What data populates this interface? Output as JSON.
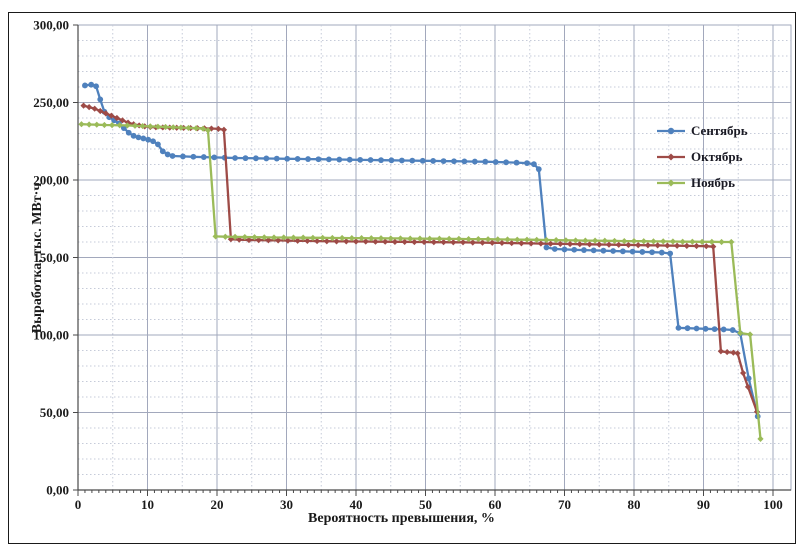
{
  "chart_data": {
    "type": "line",
    "title": "",
    "xlabel": "Вероятность превышения, %",
    "ylabel": "Выработка, тыс. МВт·ч",
    "xlim": [
      0,
      100
    ],
    "ylim": [
      0,
      300
    ],
    "x_major_step": 10,
    "x_minor_step": 5,
    "y_major_step": 50,
    "y_minor_step": 10,
    "grid": "both",
    "legend_position": "inside-right",
    "colors": {
      "september": "#4F81BD",
      "october": "#9E4B47",
      "november": "#9BBB59",
      "grid_minor": "#c6cbd9",
      "grid_major": "#a2a8bc",
      "axis": "#4a4a4a",
      "text": "#1a1a1a"
    },
    "series": [
      {
        "name": "Сентябрь",
        "color": "#4F81BD",
        "marker": "circle",
        "points": [
          [
            1.0,
            261
          ],
          [
            1.9,
            261.5
          ],
          [
            2.6,
            260.5
          ],
          [
            3.2,
            252
          ],
          [
            3.8,
            244
          ],
          [
            4.5,
            240.5
          ],
          [
            5.2,
            238.5
          ],
          [
            5.9,
            236.5
          ],
          [
            6.6,
            233.5
          ],
          [
            7.3,
            230.5
          ],
          [
            8.0,
            228.5
          ],
          [
            8.7,
            227.5
          ],
          [
            9.4,
            226.8
          ],
          [
            10.1,
            226
          ],
          [
            10.8,
            225
          ],
          [
            11.5,
            223
          ],
          [
            12.2,
            218.5
          ],
          [
            12.9,
            216.5
          ],
          [
            13.6,
            215.5
          ],
          [
            15.1,
            215.2
          ],
          [
            16.6,
            215
          ],
          [
            18.1,
            214.8
          ],
          [
            19.6,
            214.6
          ],
          [
            21.1,
            214.4
          ],
          [
            22.6,
            214.2
          ],
          [
            24.1,
            214.1
          ],
          [
            25.6,
            214
          ],
          [
            27.1,
            213.9
          ],
          [
            28.6,
            213.8
          ],
          [
            30.1,
            213.7
          ],
          [
            31.6,
            213.6
          ],
          [
            33.1,
            213.5
          ],
          [
            34.6,
            213.4
          ],
          [
            36.1,
            213.3
          ],
          [
            37.6,
            213.2
          ],
          [
            39.1,
            213.1
          ],
          [
            40.6,
            213
          ],
          [
            42.1,
            212.9
          ],
          [
            43.6,
            212.8
          ],
          [
            45.1,
            212.7
          ],
          [
            46.6,
            212.6
          ],
          [
            48.1,
            212.5
          ],
          [
            49.6,
            212.4
          ],
          [
            51.1,
            212.3
          ],
          [
            52.6,
            212.2
          ],
          [
            54.1,
            212.1
          ],
          [
            55.6,
            212
          ],
          [
            57.1,
            211.9
          ],
          [
            58.6,
            211.8
          ],
          [
            60.1,
            211.6
          ],
          [
            61.6,
            211.4
          ],
          [
            63.1,
            211.2
          ],
          [
            64.6,
            210.9
          ],
          [
            65.6,
            210.2
          ],
          [
            66.3,
            207
          ],
          [
            67.4,
            156.5
          ],
          [
            68.6,
            155.5
          ],
          [
            70.0,
            155.2
          ],
          [
            71.4,
            155
          ],
          [
            72.8,
            154.8
          ],
          [
            74.2,
            154.6
          ],
          [
            75.6,
            154.4
          ],
          [
            77.0,
            154.2
          ],
          [
            78.4,
            154
          ],
          [
            79.8,
            153.8
          ],
          [
            81.2,
            153.6
          ],
          [
            82.6,
            153.4
          ],
          [
            84.0,
            153.2
          ],
          [
            85.2,
            152.6
          ],
          [
            86.4,
            104.6
          ],
          [
            87.7,
            104.4
          ],
          [
            89.0,
            104.2
          ],
          [
            90.3,
            104
          ],
          [
            91.6,
            103.8
          ],
          [
            92.9,
            103.6
          ],
          [
            94.2,
            103.2
          ],
          [
            95.3,
            101
          ],
          [
            96.5,
            72
          ],
          [
            97.8,
            47.5
          ]
        ]
      },
      {
        "name": "Октябрь",
        "color": "#9E4B47",
        "marker": "diamond",
        "points": [
          [
            0.8,
            248
          ],
          [
            1.6,
            247
          ],
          [
            2.4,
            246
          ],
          [
            3.2,
            244.5
          ],
          [
            4.0,
            243
          ],
          [
            4.8,
            241.5
          ],
          [
            5.6,
            240
          ],
          [
            6.4,
            238.5
          ],
          [
            7.2,
            237
          ],
          [
            8.0,
            236
          ],
          [
            8.8,
            235.2
          ],
          [
            9.6,
            234.6
          ],
          [
            10.4,
            234.2
          ],
          [
            11.2,
            234
          ],
          [
            12.2,
            233.9
          ],
          [
            13.2,
            233.8
          ],
          [
            14.2,
            233.7
          ],
          [
            15.2,
            233.6
          ],
          [
            16.2,
            233.5
          ],
          [
            17.2,
            233.4
          ],
          [
            18.2,
            233.3
          ],
          [
            19.2,
            233.2
          ],
          [
            20.2,
            233
          ],
          [
            21.0,
            232.4
          ],
          [
            22.0,
            161.8
          ],
          [
            23.2,
            161.5
          ],
          [
            24.6,
            161.3
          ],
          [
            26.0,
            161.2
          ],
          [
            27.4,
            161.1
          ],
          [
            28.8,
            161
          ],
          [
            30.2,
            160.9
          ],
          [
            31.6,
            160.8
          ],
          [
            33.0,
            160.7
          ],
          [
            34.4,
            160.6
          ],
          [
            35.8,
            160.5
          ],
          [
            37.2,
            160.4
          ],
          [
            38.6,
            160.4
          ],
          [
            40.0,
            160.3
          ],
          [
            41.4,
            160.3
          ],
          [
            42.8,
            160.2
          ],
          [
            44.2,
            160.2
          ],
          [
            45.6,
            160.1
          ],
          [
            47.0,
            160.1
          ],
          [
            48.4,
            160
          ],
          [
            49.8,
            160
          ],
          [
            51.2,
            159.9
          ],
          [
            52.6,
            159.9
          ],
          [
            54.0,
            159.8
          ],
          [
            55.4,
            159.8
          ],
          [
            56.8,
            159.7
          ],
          [
            58.2,
            159.6
          ],
          [
            59.6,
            159.5
          ],
          [
            61.0,
            159.4
          ],
          [
            62.4,
            159.3
          ],
          [
            63.8,
            159.2
          ],
          [
            65.2,
            159.1
          ],
          [
            66.6,
            159
          ],
          [
            68.0,
            158.9
          ],
          [
            69.4,
            158.8
          ],
          [
            70.8,
            158.7
          ],
          [
            72.2,
            158.6
          ],
          [
            73.6,
            158.5
          ],
          [
            75.0,
            158.4
          ],
          [
            76.4,
            158.3
          ],
          [
            77.8,
            158.2
          ],
          [
            79.2,
            158.1
          ],
          [
            80.6,
            158
          ],
          [
            82.0,
            157.9
          ],
          [
            83.4,
            157.8
          ],
          [
            84.8,
            157.7
          ],
          [
            86.2,
            157.6
          ],
          [
            87.6,
            157.5
          ],
          [
            89.0,
            157.4
          ],
          [
            90.4,
            157.3
          ],
          [
            91.4,
            157
          ],
          [
            92.5,
            89.5
          ],
          [
            93.4,
            89
          ],
          [
            94.3,
            88.6
          ],
          [
            94.9,
            88.2
          ],
          [
            95.7,
            75.5
          ],
          [
            96.4,
            66.5
          ],
          [
            97.7,
            50.5
          ]
        ]
      },
      {
        "name": "Ноябрь",
        "color": "#9BBB59",
        "marker": "diamond",
        "points": [
          [
            0.5,
            236
          ],
          [
            1.6,
            235.8
          ],
          [
            2.7,
            235.7
          ],
          [
            3.8,
            235.5
          ],
          [
            4.9,
            235.4
          ],
          [
            6.0,
            235.3
          ],
          [
            7.1,
            235.2
          ],
          [
            8.2,
            235
          ],
          [
            9.3,
            234.8
          ],
          [
            10.4,
            234.6
          ],
          [
            11.5,
            234.4
          ],
          [
            12.6,
            234.2
          ],
          [
            13.7,
            234
          ],
          [
            14.8,
            233.8
          ],
          [
            15.9,
            233.6
          ],
          [
            17.0,
            233.4
          ],
          [
            18.0,
            233.1
          ],
          [
            18.7,
            232
          ],
          [
            19.8,
            163.6
          ],
          [
            21.2,
            163.4
          ],
          [
            22.6,
            163.3
          ],
          [
            24.0,
            163.2
          ],
          [
            25.4,
            163.1
          ],
          [
            26.8,
            163
          ],
          [
            28.2,
            162.9
          ],
          [
            29.6,
            162.9
          ],
          [
            31.0,
            162.8
          ],
          [
            32.4,
            162.8
          ],
          [
            33.8,
            162.7
          ],
          [
            35.2,
            162.7
          ],
          [
            36.6,
            162.6
          ],
          [
            38.0,
            162.6
          ],
          [
            39.4,
            162.5
          ],
          [
            40.8,
            162.5
          ],
          [
            42.2,
            162.4
          ],
          [
            43.6,
            162.4
          ],
          [
            45.0,
            162.3
          ],
          [
            46.4,
            162.3
          ],
          [
            47.8,
            162.2
          ],
          [
            49.2,
            162.2
          ],
          [
            50.6,
            162.1
          ],
          [
            52.0,
            162.1
          ],
          [
            53.4,
            162
          ],
          [
            54.8,
            162
          ],
          [
            56.2,
            161.9
          ],
          [
            57.6,
            161.9
          ],
          [
            59.0,
            161.8
          ],
          [
            60.4,
            161.7
          ],
          [
            61.8,
            161.6
          ],
          [
            63.2,
            161.5
          ],
          [
            64.6,
            161.5
          ],
          [
            66.0,
            161.4
          ],
          [
            67.4,
            161.3
          ],
          [
            68.8,
            161.2
          ],
          [
            70.2,
            161.1
          ],
          [
            71.6,
            161
          ],
          [
            73.0,
            160.9
          ],
          [
            74.4,
            160.9
          ],
          [
            75.8,
            160.8
          ],
          [
            77.2,
            160.7
          ],
          [
            78.6,
            160.6
          ],
          [
            80.0,
            160.6
          ],
          [
            81.4,
            160.5
          ],
          [
            82.8,
            160.4
          ],
          [
            84.2,
            160.4
          ],
          [
            85.6,
            160.3
          ],
          [
            87.0,
            160.2
          ],
          [
            88.4,
            160.2
          ],
          [
            89.8,
            160.1
          ],
          [
            91.2,
            160.1
          ],
          [
            92.6,
            160
          ],
          [
            94.0,
            160
          ],
          [
            95.3,
            101.3
          ],
          [
            96.7,
            100.3
          ],
          [
            98.2,
            33
          ]
        ]
      }
    ]
  }
}
